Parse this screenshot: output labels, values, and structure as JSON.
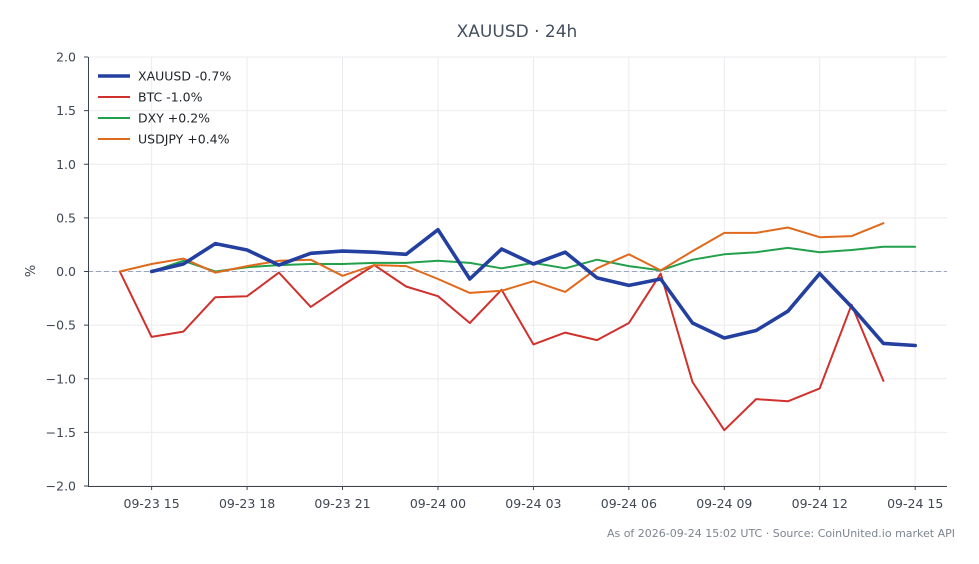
{
  "chart_data": {
    "type": "line",
    "title": "XAUUSD · 24h",
    "xlabel": "",
    "ylabel": "%",
    "ylim": [
      -2.0,
      2.0
    ],
    "yticks": [
      {
        "value": -2.0,
        "label": "−2.0"
      },
      {
        "value": -1.5,
        "label": "−1.5"
      },
      {
        "value": -1.0,
        "label": "−1.0"
      },
      {
        "value": -0.5,
        "label": "−0.5"
      },
      {
        "value": 0.0,
        "label": "0.0"
      },
      {
        "value": 0.5,
        "label": "0.5"
      },
      {
        "value": 1.0,
        "label": "1.0"
      },
      {
        "value": 1.5,
        "label": "1.5"
      },
      {
        "value": 2.0,
        "label": "2.0"
      }
    ],
    "xlim": [
      "2026-09-23 13:00",
      "2026-09-24 16:00"
    ],
    "xticks": [
      {
        "value": "2026-09-23 15:00",
        "label": "09-23 15"
      },
      {
        "value": "2026-09-23 18:00",
        "label": "09-23 18"
      },
      {
        "value": "2026-09-23 21:00",
        "label": "09-23 21"
      },
      {
        "value": "2026-09-24 00:00",
        "label": "09-24 00"
      },
      {
        "value": "2026-09-24 03:00",
        "label": "09-24 03"
      },
      {
        "value": "2026-09-24 06:00",
        "label": "09-24 06"
      },
      {
        "value": "2026-09-24 09:00",
        "label": "09-24 09"
      },
      {
        "value": "2026-09-24 12:00",
        "label": "09-24 12"
      },
      {
        "value": "2026-09-24 15:00",
        "label": "09-24 15"
      }
    ],
    "grid": true,
    "zero_line": true,
    "legend": "top-left",
    "series": [
      {
        "name": "XAUUSD -0.7%",
        "color": "#2340a0",
        "emphasis": true,
        "points": [
          [
            "2026-09-23 15:00",
            0.0
          ],
          [
            "2026-09-23 16:00",
            0.07
          ],
          [
            "2026-09-23 17:00",
            0.26
          ],
          [
            "2026-09-23 18:00",
            0.2
          ],
          [
            "2026-09-23 19:00",
            0.06
          ],
          [
            "2026-09-23 20:00",
            0.17
          ],
          [
            "2026-09-23 21:00",
            0.19
          ],
          [
            "2026-09-23 22:00",
            0.18
          ],
          [
            "2026-09-23 23:00",
            0.16
          ],
          [
            "2026-09-24 00:00",
            0.39
          ],
          [
            "2026-09-24 01:00",
            -0.07
          ],
          [
            "2026-09-24 02:00",
            0.21
          ],
          [
            "2026-09-24 03:00",
            0.07
          ],
          [
            "2026-09-24 04:00",
            0.18
          ],
          [
            "2026-09-24 05:00",
            -0.06
          ],
          [
            "2026-09-24 06:00",
            -0.13
          ],
          [
            "2026-09-24 07:00",
            -0.07
          ],
          [
            "2026-09-24 08:00",
            -0.48
          ],
          [
            "2026-09-24 09:00",
            -0.62
          ],
          [
            "2026-09-24 10:00",
            -0.55
          ],
          [
            "2026-09-24 11:00",
            -0.37
          ],
          [
            "2026-09-24 12:00",
            -0.02
          ],
          [
            "2026-09-24 13:00",
            -0.33
          ],
          [
            "2026-09-24 14:00",
            -0.67
          ],
          [
            "2026-09-24 15:00",
            -0.69
          ]
        ]
      },
      {
        "name": "BTC -1.0%",
        "color": "#d0312d",
        "emphasis": false,
        "points": [
          [
            "2026-09-23 14:00",
            0.0
          ],
          [
            "2026-09-23 15:00",
            -0.61
          ],
          [
            "2026-09-23 16:00",
            -0.56
          ],
          [
            "2026-09-23 17:00",
            -0.24
          ],
          [
            "2026-09-23 18:00",
            -0.23
          ],
          [
            "2026-09-23 19:00",
            -0.01
          ],
          [
            "2026-09-23 20:00",
            -0.33
          ],
          [
            "2026-09-23 21:00",
            -0.13
          ],
          [
            "2026-09-23 22:00",
            0.06
          ],
          [
            "2026-09-23 23:00",
            -0.14
          ],
          [
            "2026-09-24 00:00",
            -0.23
          ],
          [
            "2026-09-24 01:00",
            -0.48
          ],
          [
            "2026-09-24 02:00",
            -0.17
          ],
          [
            "2026-09-24 03:00",
            -0.68
          ],
          [
            "2026-09-24 04:00",
            -0.57
          ],
          [
            "2026-09-24 05:00",
            -0.64
          ],
          [
            "2026-09-24 06:00",
            -0.48
          ],
          [
            "2026-09-24 07:00",
            -0.02
          ],
          [
            "2026-09-24 08:00",
            -1.03
          ],
          [
            "2026-09-24 09:00",
            -1.48
          ],
          [
            "2026-09-24 10:00",
            -1.19
          ],
          [
            "2026-09-24 11:00",
            -1.21
          ],
          [
            "2026-09-24 12:00",
            -1.09
          ],
          [
            "2026-09-24 13:00",
            -0.31
          ],
          [
            "2026-09-24 14:00",
            -1.02
          ]
        ]
      },
      {
        "name": "DXY +0.2%",
        "color": "#22a04b",
        "emphasis": false,
        "points": [
          [
            "2026-09-23 15:00",
            0.0
          ],
          [
            "2026-09-23 16:00",
            0.1
          ],
          [
            "2026-09-23 17:00",
            0.0
          ],
          [
            "2026-09-23 18:00",
            0.04
          ],
          [
            "2026-09-23 19:00",
            0.06
          ],
          [
            "2026-09-23 20:00",
            0.07
          ],
          [
            "2026-09-23 21:00",
            0.07
          ],
          [
            "2026-09-23 22:00",
            0.08
          ],
          [
            "2026-09-23 23:00",
            0.08
          ],
          [
            "2026-09-24 00:00",
            0.1
          ],
          [
            "2026-09-24 01:00",
            0.08
          ],
          [
            "2026-09-24 02:00",
            0.03
          ],
          [
            "2026-09-24 03:00",
            0.08
          ],
          [
            "2026-09-24 04:00",
            0.03
          ],
          [
            "2026-09-24 05:00",
            0.11
          ],
          [
            "2026-09-24 06:00",
            0.05
          ],
          [
            "2026-09-24 07:00",
            0.01
          ],
          [
            "2026-09-24 08:00",
            0.11
          ],
          [
            "2026-09-24 09:00",
            0.16
          ],
          [
            "2026-09-24 10:00",
            0.18
          ],
          [
            "2026-09-24 11:00",
            0.22
          ],
          [
            "2026-09-24 12:00",
            0.18
          ],
          [
            "2026-09-24 13:00",
            0.2
          ],
          [
            "2026-09-24 14:00",
            0.23
          ],
          [
            "2026-09-24 15:00",
            0.23
          ]
        ]
      },
      {
        "name": "USDJPY +0.4%",
        "color": "#e06a1b",
        "emphasis": false,
        "points": [
          [
            "2026-09-23 14:00",
            0.0
          ],
          [
            "2026-09-23 15:00",
            0.07
          ],
          [
            "2026-09-23 16:00",
            0.12
          ],
          [
            "2026-09-23 17:00",
            -0.01
          ],
          [
            "2026-09-23 18:00",
            0.05
          ],
          [
            "2026-09-23 19:00",
            0.1
          ],
          [
            "2026-09-23 20:00",
            0.11
          ],
          [
            "2026-09-23 21:00",
            -0.04
          ],
          [
            "2026-09-23 22:00",
            0.06
          ],
          [
            "2026-09-23 23:00",
            0.05
          ],
          [
            "2026-09-24 00:00",
            -0.07
          ],
          [
            "2026-09-24 01:00",
            -0.2
          ],
          [
            "2026-09-24 02:00",
            -0.18
          ],
          [
            "2026-09-24 03:00",
            -0.09
          ],
          [
            "2026-09-24 04:00",
            -0.19
          ],
          [
            "2026-09-24 05:00",
            0.03
          ],
          [
            "2026-09-24 06:00",
            0.16
          ],
          [
            "2026-09-24 07:00",
            0.01
          ],
          [
            "2026-09-24 08:00",
            0.19
          ],
          [
            "2026-09-24 09:00",
            0.36
          ],
          [
            "2026-09-24 10:00",
            0.36
          ],
          [
            "2026-09-24 11:00",
            0.41
          ],
          [
            "2026-09-24 12:00",
            0.32
          ],
          [
            "2026-09-24 13:00",
            0.33
          ],
          [
            "2026-09-24 14:00",
            0.45
          ]
        ]
      }
    ]
  },
  "footer": "As of 2026-09-24 15:02 UTC · Source: CoinUnited.io market API"
}
